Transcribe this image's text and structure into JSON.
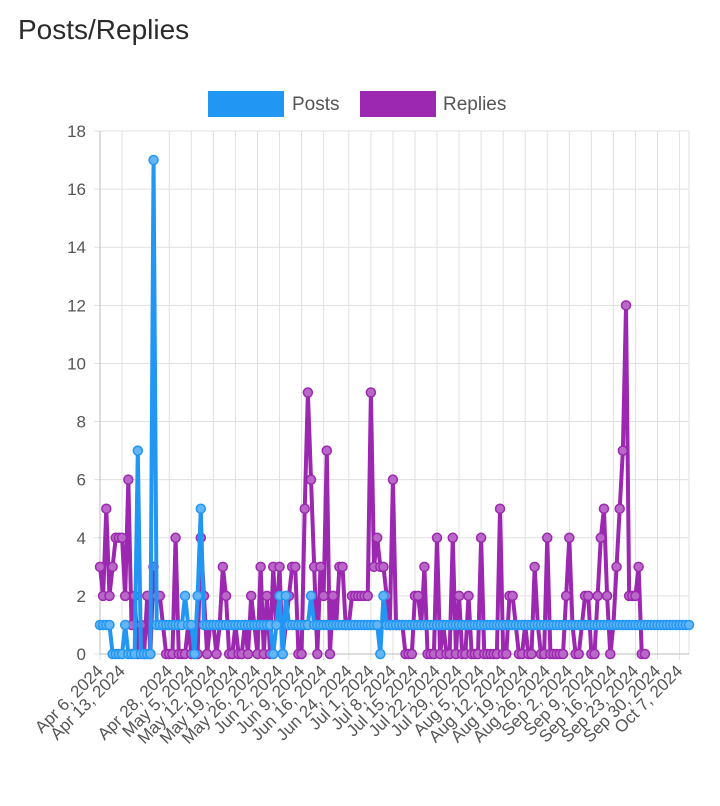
{
  "page": {
    "title": "Posts/Replies"
  },
  "colors": {
    "posts_fill": "#2196f3",
    "posts_point": "#64b5f6",
    "replies_fill": "#9c27b0",
    "replies_point": "#ba68c8",
    "grid": "#e0e0e0",
    "axis": "#bdbdbd"
  },
  "chart_data": {
    "type": "line",
    "title": "Posts/Replies",
    "start_date": "2024-04-06",
    "x_tick_labels": [
      "Apr 6, 2024",
      "Apr 13, 2024",
      "Apr 28, 2024",
      "May 5, 2024",
      "May 12, 2024",
      "May 19, 2024",
      "May 26, 2024",
      "Jun 2, 2024",
      "Jun 9, 2024",
      "Jun 16, 2024",
      "Jun 24, 2024",
      "Jul 1, 2024",
      "Jul 8, 2024",
      "Jul 15, 2024",
      "Jul 22, 2024",
      "Jul 29, 2024",
      "Aug 5, 2024",
      "Aug 12, 2024",
      "Aug 19, 2024",
      "Aug 26, 2024",
      "Sep 2, 2024",
      "Sep 9, 2024",
      "Sep 16, 2024",
      "Sep 23, 2024",
      "Sep 30, 2024",
      "Oct 7, 2024"
    ],
    "x_tick_days": [
      0,
      7,
      22,
      29,
      36,
      43,
      50,
      57,
      64,
      71,
      79,
      86,
      93,
      100,
      107,
      114,
      121,
      128,
      135,
      142,
      149,
      156,
      163,
      170,
      177,
      184
    ],
    "ylim": [
      0,
      18
    ],
    "y_ticks": [
      0,
      2,
      4,
      6,
      8,
      10,
      12,
      14,
      16,
      18
    ],
    "xlabel": "",
    "ylabel": "",
    "legend": {
      "position": "top-center"
    },
    "series": [
      {
        "name": "Posts",
        "values": [
          1,
          1,
          1,
          1,
          0,
          0,
          0,
          0,
          1,
          0,
          0,
          0,
          7,
          0,
          0,
          0,
          0,
          17,
          1,
          1,
          1,
          1,
          1,
          1,
          1,
          1,
          1,
          2,
          1,
          1,
          0,
          2,
          5,
          1,
          1,
          1,
          1,
          1,
          1,
          1,
          1,
          1,
          1,
          1,
          1,
          1,
          1,
          1,
          1,
          1,
          1,
          1,
          1,
          1,
          1,
          0,
          1,
          2,
          0,
          2,
          1,
          1,
          1,
          1,
          1,
          1,
          1,
          2,
          1,
          1,
          1,
          1,
          1,
          1,
          1,
          1,
          1,
          1,
          1,
          1,
          1,
          1,
          1,
          1,
          1,
          1,
          1,
          1,
          1,
          0,
          2,
          1,
          1,
          1,
          1,
          1,
          1,
          1,
          1,
          1,
          1,
          1,
          1,
          1,
          1,
          1,
          1,
          1,
          1,
          1,
          1,
          1,
          1,
          1,
          1,
          1,
          1,
          1,
          1,
          1,
          1,
          1,
          1,
          1,
          1,
          1,
          1,
          1,
          1,
          1,
          1,
          1,
          1,
          1,
          1,
          1,
          1,
          1,
          1,
          1,
          1,
          1,
          1,
          1,
          1,
          1,
          1,
          1,
          1,
          1,
          1,
          1,
          1,
          1,
          1,
          1,
          1,
          1,
          1,
          1,
          1,
          1,
          1,
          1,
          1,
          1,
          1,
          1,
          1,
          1,
          1,
          1,
          1,
          1,
          1,
          1,
          1,
          1,
          1,
          1,
          1,
          1,
          1,
          1,
          1,
          1,
          1,
          1
        ]
      },
      {
        "name": "Replies",
        "values": [
          3,
          2,
          5,
          2,
          3,
          4,
          4,
          4,
          2,
          6,
          1,
          2,
          0,
          1,
          0,
          2,
          0,
          3,
          2,
          2,
          1,
          0,
          0,
          0,
          4,
          0,
          0,
          0,
          1,
          0,
          0,
          0,
          4,
          2,
          0,
          1,
          1,
          0,
          1,
          3,
          2,
          0,
          0,
          1,
          0,
          0,
          1,
          0,
          2,
          1,
          0,
          3,
          0,
          2,
          0,
          3,
          1,
          3,
          0,
          1,
          2,
          3,
          3,
          0,
          0,
          5,
          9,
          6,
          3,
          0,
          3,
          2,
          7,
          0,
          2,
          1,
          3,
          3,
          1,
          1,
          2,
          2,
          2,
          2,
          2,
          2,
          9,
          3,
          4,
          3,
          3,
          2,
          1,
          6,
          1,
          1,
          1,
          0,
          0,
          0,
          2,
          2,
          1,
          3,
          0,
          0,
          0,
          4,
          0,
          1,
          0,
          0,
          4,
          0,
          2,
          0,
          0,
          2,
          0,
          0,
          0,
          4,
          0,
          0,
          0,
          0,
          0,
          5,
          0,
          0,
          2,
          2,
          1,
          0,
          0,
          1,
          0,
          0,
          3,
          1,
          0,
          0,
          4,
          0,
          0,
          0,
          0,
          0,
          2,
          4,
          1,
          0,
          0,
          1,
          2,
          2,
          0,
          0,
          2,
          4,
          5,
          2,
          0,
          1,
          3,
          5,
          7,
          12,
          2,
          2,
          2,
          3,
          0,
          0
        ]
      }
    ]
  }
}
